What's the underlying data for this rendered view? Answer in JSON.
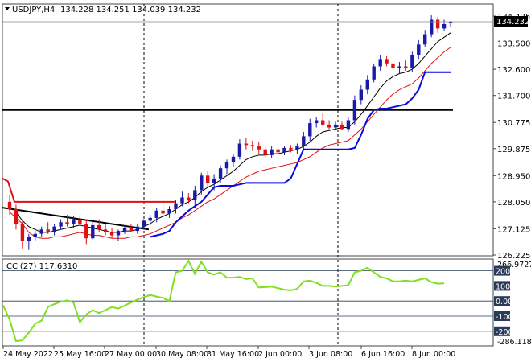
{
  "header": {
    "symbol_label": "USDJPY,H4",
    "ohlc_text": "134.228 134.251 134.039 134.232"
  },
  "price_axis": {
    "labels": [
      "134.425",
      "133.500",
      "132.600",
      "131.700",
      "130.775",
      "129.875",
      "128.950",
      "128.050",
      "127.125",
      "126.225"
    ],
    "current_price": "134.232"
  },
  "time_axis": {
    "labels": [
      "24 May 2022",
      "25 May 16:00",
      "27 May 00:00",
      "30 May 08:00",
      "31 May 16:00",
      "2 Jun 00:00",
      "3 Jun 08:00",
      "6 Jun 16:00",
      "8 Jun 00:00"
    ]
  },
  "indicator": {
    "title": "CCI(27) 117.6310",
    "axis_labels": [
      "266.9727",
      "200",
      "100",
      "0.00",
      "-100",
      "-200",
      "-286.1189"
    ]
  },
  "colors": {
    "up_candle": "#1a1aa8",
    "down_candle": "#e01010",
    "fast_ma": "#000000",
    "slow_ma": "#e01010",
    "stop_line": "#0a0ae0",
    "support_line": "#000000",
    "cci_line": "#80e020",
    "level_line": "#2a3a5a"
  },
  "chart_data": {
    "type": "candlestick",
    "candles": [
      {
        "o": 128.05,
        "h": 128.3,
        "l": 127.6,
        "c": 127.8
      },
      {
        "o": 127.8,
        "h": 127.95,
        "l": 127.1,
        "c": 127.3
      },
      {
        "o": 127.3,
        "h": 127.4,
        "l": 126.45,
        "c": 126.7
      },
      {
        "o": 126.7,
        "h": 126.95,
        "l": 126.4,
        "c": 126.85
      },
      {
        "o": 126.85,
        "h": 127.05,
        "l": 126.7,
        "c": 126.95
      },
      {
        "o": 126.95,
        "h": 127.2,
        "l": 126.85,
        "c": 127.1
      },
      {
        "o": 127.1,
        "h": 127.35,
        "l": 126.95,
        "c": 127.0
      },
      {
        "o": 127.0,
        "h": 127.3,
        "l": 126.9,
        "c": 127.2
      },
      {
        "o": 127.2,
        "h": 127.45,
        "l": 127.1,
        "c": 127.35
      },
      {
        "o": 127.35,
        "h": 127.6,
        "l": 127.2,
        "c": 127.3
      },
      {
        "o": 127.3,
        "h": 127.55,
        "l": 127.15,
        "c": 127.45
      },
      {
        "o": 127.45,
        "h": 127.6,
        "l": 127.25,
        "c": 127.3
      },
      {
        "o": 127.3,
        "h": 127.45,
        "l": 126.6,
        "c": 126.8
      },
      {
        "o": 126.8,
        "h": 127.4,
        "l": 126.75,
        "c": 127.25
      },
      {
        "o": 127.25,
        "h": 127.45,
        "l": 127.0,
        "c": 127.1
      },
      {
        "o": 127.1,
        "h": 127.3,
        "l": 126.9,
        "c": 127.0
      },
      {
        "o": 127.0,
        "h": 127.15,
        "l": 126.8,
        "c": 126.9
      },
      {
        "o": 126.9,
        "h": 127.1,
        "l": 126.7,
        "c": 127.05
      },
      {
        "o": 127.05,
        "h": 127.25,
        "l": 126.95,
        "c": 127.15
      },
      {
        "o": 127.15,
        "h": 127.3,
        "l": 127.0,
        "c": 127.05
      },
      {
        "o": 127.05,
        "h": 127.3,
        "l": 126.95,
        "c": 127.2
      },
      {
        "o": 127.2,
        "h": 127.45,
        "l": 127.1,
        "c": 127.4
      },
      {
        "o": 127.4,
        "h": 127.6,
        "l": 127.25,
        "c": 127.5
      },
      {
        "o": 127.5,
        "h": 127.85,
        "l": 127.35,
        "c": 127.75
      },
      {
        "o": 127.75,
        "h": 128.0,
        "l": 127.55,
        "c": 127.65
      },
      {
        "o": 127.65,
        "h": 127.9,
        "l": 127.5,
        "c": 127.8
      },
      {
        "o": 127.8,
        "h": 128.1,
        "l": 127.65,
        "c": 128.0
      },
      {
        "o": 128.0,
        "h": 128.4,
        "l": 127.9,
        "c": 128.2
      },
      {
        "o": 128.2,
        "h": 128.35,
        "l": 128.0,
        "c": 128.1
      },
      {
        "o": 128.1,
        "h": 128.6,
        "l": 127.85,
        "c": 128.45
      },
      {
        "o": 128.45,
        "h": 129.05,
        "l": 128.3,
        "c": 128.95
      },
      {
        "o": 128.95,
        "h": 129.1,
        "l": 128.55,
        "c": 128.7
      },
      {
        "o": 128.7,
        "h": 129.0,
        "l": 128.45,
        "c": 128.85
      },
      {
        "o": 128.85,
        "h": 129.3,
        "l": 128.7,
        "c": 129.2
      },
      {
        "o": 129.2,
        "h": 129.5,
        "l": 129.0,
        "c": 129.4
      },
      {
        "o": 129.4,
        "h": 129.7,
        "l": 129.25,
        "c": 129.6
      },
      {
        "o": 129.6,
        "h": 130.2,
        "l": 129.5,
        "c": 130.05
      },
      {
        "o": 130.05,
        "h": 130.25,
        "l": 129.85,
        "c": 130.0
      },
      {
        "o": 130.0,
        "h": 130.15,
        "l": 129.8,
        "c": 129.95
      },
      {
        "o": 129.95,
        "h": 130.1,
        "l": 129.7,
        "c": 129.85
      },
      {
        "o": 129.85,
        "h": 129.95,
        "l": 129.55,
        "c": 129.65
      },
      {
        "o": 129.65,
        "h": 129.95,
        "l": 129.55,
        "c": 129.85
      },
      {
        "o": 129.85,
        "h": 129.95,
        "l": 129.7,
        "c": 129.75
      },
      {
        "o": 129.75,
        "h": 129.95,
        "l": 129.65,
        "c": 129.9
      },
      {
        "o": 129.9,
        "h": 130.0,
        "l": 129.75,
        "c": 129.85
      },
      {
        "o": 129.85,
        "h": 130.05,
        "l": 129.7,
        "c": 129.95
      },
      {
        "o": 129.95,
        "h": 130.45,
        "l": 129.85,
        "c": 130.3
      },
      {
        "o": 130.3,
        "h": 130.9,
        "l": 130.1,
        "c": 130.75
      },
      {
        "o": 130.75,
        "h": 130.95,
        "l": 130.6,
        "c": 130.85
      },
      {
        "o": 130.85,
        "h": 131.1,
        "l": 130.65,
        "c": 130.7
      },
      {
        "o": 130.7,
        "h": 130.85,
        "l": 130.5,
        "c": 130.6
      },
      {
        "o": 130.6,
        "h": 130.8,
        "l": 130.5,
        "c": 130.7
      },
      {
        "o": 130.7,
        "h": 130.8,
        "l": 130.5,
        "c": 130.55
      },
      {
        "o": 130.55,
        "h": 130.95,
        "l": 130.45,
        "c": 130.85
      },
      {
        "o": 130.85,
        "h": 131.7,
        "l": 130.7,
        "c": 131.55
      },
      {
        "o": 131.55,
        "h": 132.05,
        "l": 131.4,
        "c": 131.9
      },
      {
        "o": 131.9,
        "h": 132.4,
        "l": 131.75,
        "c": 132.25
      },
      {
        "o": 132.25,
        "h": 132.8,
        "l": 132.15,
        "c": 132.7
      },
      {
        "o": 132.7,
        "h": 133.1,
        "l": 132.55,
        "c": 132.95
      },
      {
        "o": 132.95,
        "h": 133.05,
        "l": 132.7,
        "c": 132.8
      },
      {
        "o": 132.8,
        "h": 132.95,
        "l": 132.55,
        "c": 132.65
      },
      {
        "o": 132.65,
        "h": 132.85,
        "l": 132.45,
        "c": 132.7
      },
      {
        "o": 132.7,
        "h": 132.9,
        "l": 132.55,
        "c": 132.65
      },
      {
        "o": 132.65,
        "h": 133.2,
        "l": 132.5,
        "c": 133.1
      },
      {
        "o": 133.1,
        "h": 133.6,
        "l": 132.95,
        "c": 133.45
      },
      {
        "o": 133.45,
        "h": 133.95,
        "l": 133.35,
        "c": 133.8
      },
      {
        "o": 133.8,
        "h": 134.45,
        "l": 133.7,
        "c": 134.3
      },
      {
        "o": 134.3,
        "h": 134.4,
        "l": 133.85,
        "c": 134.0
      },
      {
        "o": 134.0,
        "h": 134.3,
        "l": 133.9,
        "c": 134.15
      },
      {
        "o": 134.228,
        "h": 134.251,
        "l": 134.039,
        "c": 134.232
      }
    ],
    "fast_ma": [
      127.9,
      127.7,
      127.4,
      127.2,
      127.1,
      127.0,
      127.0,
      127.05,
      127.1,
      127.15,
      127.2,
      127.25,
      127.2,
      127.15,
      127.1,
      127.05,
      127.0,
      127.0,
      127.05,
      127.05,
      127.1,
      127.2,
      127.3,
      127.45,
      127.55,
      127.65,
      127.8,
      127.95,
      128.05,
      128.2,
      128.4,
      128.55,
      128.65,
      128.8,
      128.95,
      129.1,
      129.3,
      129.5,
      129.6,
      129.65,
      129.65,
      129.7,
      129.7,
      129.75,
      129.8,
      129.85,
      129.95,
      130.1,
      130.3,
      130.45,
      130.5,
      130.55,
      130.6,
      130.6,
      130.8,
      131.05,
      131.35,
      131.65,
      131.95,
      132.2,
      132.35,
      132.45,
      132.5,
      132.6,
      132.8,
      133.05,
      133.3,
      133.55,
      133.7,
      133.85
    ],
    "slow_ma": [
      127.7,
      127.5,
      127.3,
      127.0,
      126.85,
      126.8,
      126.8,
      126.85,
      126.85,
      126.9,
      126.95,
      127.0,
      126.95,
      126.9,
      126.9,
      126.85,
      126.8,
      126.8,
      126.8,
      126.85,
      126.85,
      126.9,
      126.95,
      127.05,
      127.15,
      127.25,
      127.35,
      127.5,
      127.6,
      127.75,
      127.9,
      128.05,
      128.15,
      128.3,
      128.45,
      128.6,
      128.75,
      128.9,
      129.0,
      129.1,
      129.15,
      129.2,
      129.25,
      129.3,
      129.35,
      129.4,
      129.5,
      129.6,
      129.75,
      129.9,
      130.0,
      130.05,
      130.1,
      130.15,
      130.35,
      130.55,
      130.8,
      131.05,
      131.3,
      131.55,
      131.75,
      131.9,
      132.0,
      132.1,
      132.3,
      132.55,
      132.8,
      133.0,
      133.2,
      133.35
    ],
    "stop_line": [
      null,
      null,
      null,
      null,
      null,
      null,
      null,
      null,
      null,
      null,
      null,
      null,
      null,
      null,
      null,
      null,
      null,
      null,
      null,
      null,
      null,
      null,
      126.85,
      126.9,
      126.95,
      127.05,
      127.35,
      127.55,
      127.75,
      127.9,
      128.05,
      128.3,
      128.55,
      128.6,
      128.6,
      128.6,
      128.65,
      128.7,
      128.7,
      128.7,
      128.7,
      128.7,
      128.7,
      128.7,
      128.85,
      129.35,
      129.85,
      129.85,
      129.85,
      129.85,
      129.85,
      129.85,
      129.85,
      129.85,
      129.9,
      130.35,
      130.9,
      131.2,
      131.25,
      131.25,
      131.3,
      131.35,
      131.4,
      131.6,
      131.9,
      132.5,
      132.5,
      132.5,
      132.5,
      132.5
    ],
    "support_line_level": 131.2,
    "resistance_level": 128.05,
    "trendline": {
      "from": 127.85,
      "to": 127.1
    },
    "cci": [
      -30,
      -120,
      -265,
      -260,
      -210,
      -150,
      -130,
      -40,
      -20,
      -5,
      5,
      -10,
      -140,
      -90,
      -60,
      -80,
      -60,
      -40,
      -50,
      -30,
      -10,
      10,
      25,
      40,
      30,
      20,
      0,
      190,
      200,
      265,
      180,
      260,
      190,
      175,
      190,
      155,
      155,
      160,
      145,
      150,
      90,
      92,
      95,
      85,
      75,
      70,
      80,
      130,
      135,
      120,
      100,
      100,
      95,
      100,
      105,
      190,
      200,
      220,
      190,
      160,
      150,
      130,
      130,
      135,
      130,
      140,
      150,
      125,
      115,
      117.63
    ],
    "cci_levels": [
      200,
      100,
      0,
      -100,
      -200
    ],
    "price_range": [
      126.225,
      134.425
    ],
    "cci_range": [
      -286.1189,
      266.9727
    ]
  }
}
